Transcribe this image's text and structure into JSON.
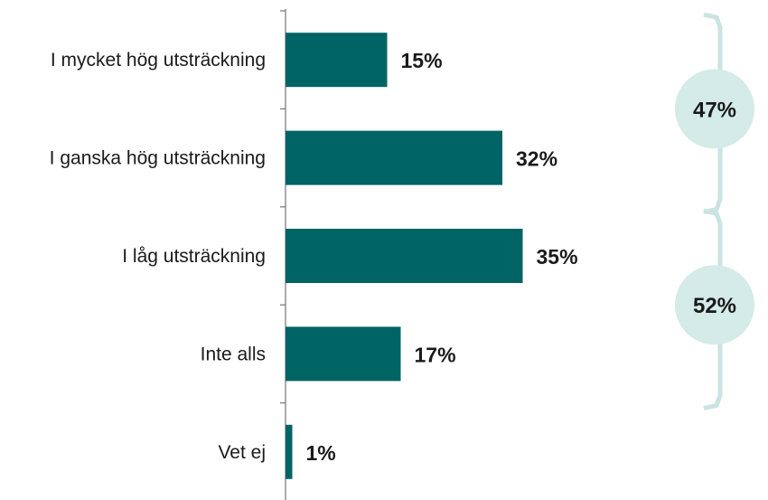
{
  "chart_data": {
    "type": "bar",
    "orientation": "horizontal",
    "categories": [
      "I mycket hög utsträckning",
      "I ganska hög utsträckning",
      "I låg utsträckning",
      "Inte alls",
      "Vet ej"
    ],
    "values": [
      15,
      32,
      35,
      17,
      1
    ],
    "value_labels": [
      "15%",
      "32%",
      "35%",
      "17%",
      "1%"
    ],
    "xlim": [
      0,
      60
    ],
    "grid": false,
    "groups": [
      {
        "label": "47%",
        "categories": [
          "I mycket hög utsträckning",
          "I ganska hög utsträckning"
        ]
      },
      {
        "label": "52%",
        "categories": [
          "I låg utsträckning",
          "Inte alls"
        ]
      }
    ]
  },
  "colors": {
    "bar": "#006464",
    "bracket": "#c9e4e1",
    "circle": "#d4ebe8",
    "axis": "#7f7f7f"
  }
}
